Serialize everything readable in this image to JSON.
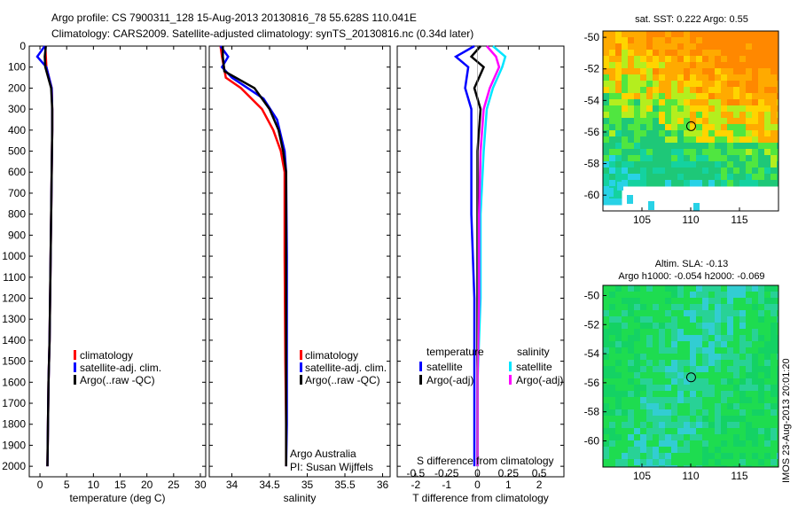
{
  "header": {
    "line1": "Argo profile: CS 7900311_128 15-Aug-2013 20130816_78 55.628S 110.041E",
    "line2": "Climatology: CARS2009. Satellite-adjusted climatology: synTS_20130816.nc (0.34d later)"
  },
  "colors": {
    "climatology": "#ff0000",
    "satellite": "#0000ff",
    "argo": "#000000",
    "sat_salinity": "#00e5ff",
    "argo_salinity": "#ff00ff"
  },
  "chart_data": [
    {
      "id": "temperature",
      "type": "line",
      "xlabel": "temperature (deg C)",
      "xlim": [
        -2,
        31
      ],
      "ylim": [
        0,
        2050
      ],
      "xticks": [
        0,
        5,
        10,
        15,
        20,
        25,
        30
      ],
      "yticks": [
        0,
        100,
        200,
        300,
        400,
        500,
        600,
        700,
        800,
        900,
        1000,
        1100,
        1200,
        1300,
        1400,
        1500,
        1600,
        1700,
        1800,
        1900,
        2000
      ],
      "legend": [
        "climatology",
        "satellite-adj. clim.",
        "Argo(..raw -QC)"
      ],
      "series": [
        {
          "name": "climatology",
          "color": "#ff0000",
          "x": [
            1.0,
            1.1,
            1.2,
            2.2,
            2.3,
            2.3,
            2.2,
            2.1,
            2.0,
            1.9,
            1.8,
            1.6,
            1.5,
            1.4
          ],
          "y": [
            0,
            50,
            100,
            200,
            300,
            400,
            600,
            800,
            1000,
            1200,
            1400,
            1600,
            1800,
            2000
          ]
        },
        {
          "name": "satellite-adj. clim.",
          "color": "#0000ff",
          "x": [
            0.9,
            -0.5,
            1.2,
            2.2,
            2.3,
            2.3,
            2.2,
            2.1,
            2.0,
            1.9,
            1.8,
            1.6,
            1.5,
            1.4
          ],
          "y": [
            0,
            50,
            100,
            200,
            300,
            400,
            600,
            800,
            1000,
            1200,
            1400,
            1600,
            1800,
            2000
          ]
        },
        {
          "name": "Argo(..raw -QC)",
          "color": "#000000",
          "x": [
            1.1,
            0.9,
            1.0,
            2.1,
            2.3,
            2.3,
            2.2,
            2.1,
            2.0,
            1.9,
            1.8,
            1.6,
            1.5,
            1.4
          ],
          "y": [
            0,
            50,
            100,
            200,
            300,
            400,
            600,
            800,
            1000,
            1200,
            1400,
            1600,
            1800,
            2000
          ]
        }
      ]
    },
    {
      "id": "salinity",
      "type": "line",
      "xlabel": "salinity",
      "xlim": [
        33.7,
        36.1
      ],
      "ylim": [
        0,
        2050
      ],
      "xticks": [
        34,
        34.5,
        35,
        35.5,
        36
      ],
      "legend": [
        "climatology",
        "satellite-adj. clim.",
        "Argo(..raw -QC)"
      ],
      "annotation": [
        "Argo Australia",
        "PI: Susan Wijffels"
      ],
      "series": [
        {
          "name": "climatology",
          "color": "#ff0000",
          "x": [
            33.85,
            33.87,
            33.92,
            34.12,
            34.4,
            34.55,
            34.65,
            34.7,
            34.7,
            34.71,
            34.72,
            34.72
          ],
          "y": [
            0,
            50,
            150,
            200,
            300,
            400,
            500,
            600,
            1000,
            1500,
            1800,
            2000
          ]
        },
        {
          "name": "satellite-adj. clim.",
          "color": "#0000ff",
          "x": [
            33.85,
            33.95,
            33.87,
            34.0,
            34.42,
            34.6,
            34.7,
            34.72,
            34.73,
            34.73,
            34.73,
            34.72
          ],
          "y": [
            0,
            50,
            100,
            150,
            250,
            350,
            500,
            600,
            1000,
            1500,
            1800,
            2000
          ]
        },
        {
          "name": "Argo(..raw -QC)",
          "color": "#000000",
          "x": [
            33.88,
            33.88,
            33.9,
            34.3,
            34.5,
            34.62,
            34.68,
            34.72,
            34.72,
            34.72,
            34.72,
            34.72
          ],
          "y": [
            0,
            50,
            120,
            200,
            300,
            400,
            500,
            600,
            1000,
            1500,
            1800,
            2000
          ]
        }
      ]
    },
    {
      "id": "difference",
      "type": "line",
      "xlabel": "T difference from climatology",
      "top_axis_label": "S difference from climatology",
      "xlim": [
        -2.6,
        2.8
      ],
      "ylim": [
        0,
        2050
      ],
      "xticks": [
        -2,
        -1,
        0,
        1,
        2
      ],
      "top_ticks": [
        -0.5,
        -0.25,
        0,
        0.25,
        0.5
      ],
      "legend_temperature": {
        "title": "temperature",
        "entries": [
          "satellite",
          "Argo(-adj)"
        ]
      },
      "legend_salinity": {
        "title": "salinity",
        "entries": [
          "satellite",
          "Argo(-adj)"
        ]
      },
      "series": [
        {
          "name": "temperature satellite",
          "color": "#0000ff",
          "x": [
            -0.1,
            -0.7,
            -0.3,
            -0.4,
            -0.2,
            -0.2,
            -0.2,
            -0.1,
            -0.1,
            -0.1
          ],
          "y": [
            0,
            50,
            100,
            200,
            300,
            500,
            800,
            1200,
            1600,
            2000
          ]
        },
        {
          "name": "temperature Argo(-adj)",
          "color": "#000000",
          "x": [
            0.1,
            -0.2,
            0.2,
            -0.1,
            0.1,
            0.0,
            0.0,
            0.0,
            0.0,
            0.0
          ],
          "y": [
            0,
            50,
            100,
            200,
            300,
            500,
            800,
            1200,
            1600,
            2000
          ]
        },
        {
          "name": "salinity satellite",
          "color": "#00e5ff",
          "x": [
            0.5,
            0.9,
            0.8,
            0.5,
            0.3,
            0.2,
            0.1,
            0.1,
            0.0,
            0.0
          ],
          "y": [
            0,
            50,
            100,
            200,
            300,
            500,
            800,
            1200,
            1600,
            2000
          ]
        },
        {
          "name": "salinity Argo(-adj)",
          "color": "#ff00ff",
          "x": [
            0.3,
            0.6,
            0.7,
            0.4,
            0.2,
            0.1,
            0.05,
            0.05,
            0.0,
            0.0
          ],
          "y": [
            0,
            50,
            100,
            200,
            300,
            500,
            800,
            1200,
            1600,
            2000
          ]
        }
      ]
    },
    {
      "id": "sst_map",
      "type": "heatmap",
      "title": "sat. SST: 0.222 Argo: 0.55",
      "xlim": [
        101,
        119
      ],
      "ylim": [
        -61,
        -49.6
      ],
      "xticks": [
        105,
        110,
        115
      ],
      "yticks": [
        -50,
        -52,
        -54,
        -56,
        -58,
        -60
      ],
      "marker": {
        "lon": 110.041,
        "lat": -55.628
      }
    },
    {
      "id": "sla_map",
      "type": "heatmap",
      "title": "Altim. SLA: -0.13",
      "subtitle": "Argo h1000: -0.054 h2000: -0.069",
      "xlim": [
        101,
        119
      ],
      "ylim": [
        -61.8,
        -49.3
      ],
      "xticks": [
        105,
        110,
        115
      ],
      "yticks": [
        -50,
        -52,
        -54,
        -56,
        -58,
        -60
      ],
      "marker": {
        "lon": 110.041,
        "lat": -55.628
      }
    }
  ],
  "footer": {
    "credit": "IMOS 23-Aug-2013 20:01:20"
  }
}
